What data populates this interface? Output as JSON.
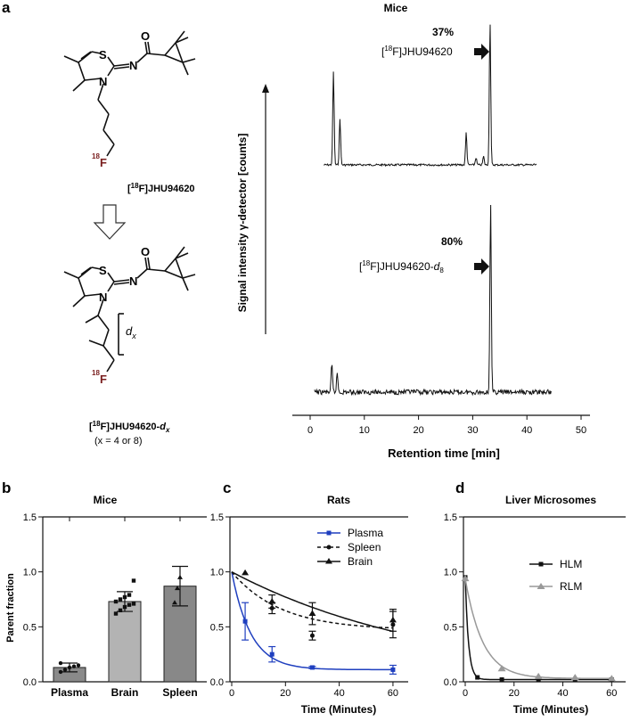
{
  "panel_a": {
    "letter": "a",
    "compound_top_label_pre": "[",
    "compound_top_iso": "18",
    "compound_top_label_post": "F]JHU94620",
    "atom_S": "S",
    "atom_N": "N",
    "atom_O": "O",
    "atom_F_iso": "18",
    "atom_F": "F",
    "dx": "d",
    "dx_sub": "x",
    "compound_bottom_label_pre": "[",
    "compound_bottom_iso": "18",
    "compound_bottom_label_post": "F]JHU94620-",
    "compound_bottom_d": "d",
    "compound_bottom_sub": "x",
    "compound_bottom_note": "(x = 4 or 8)"
  },
  "chart_data": [
    {
      "panel": "a",
      "type": "line",
      "title": "Mice",
      "xlabel": "Retention time [min]",
      "ylabel": "Signal intensity γ-detector [counts]",
      "xlim": [
        0,
        50
      ],
      "xticks": [
        0,
        10,
        20,
        30,
        40,
        50
      ],
      "series": [
        {
          "name": "[18F]JHU94620",
          "annotation_percent": "37%",
          "annotation_pre": "[",
          "annotation_iso": "18",
          "annotation_post": "F]JHU94620",
          "peaks": [
            {
              "x": 4.3,
              "y": 0.65
            },
            {
              "x": 5.5,
              "y": 0.32
            },
            {
              "x": 28.8,
              "y": 0.23
            },
            {
              "x": 30.6,
              "y": 0.05
            },
            {
              "x": 32.0,
              "y": 0.06
            },
            {
              "x": 33.2,
              "y": 1.0
            }
          ]
        },
        {
          "name": "[18F]JHU94620-d8",
          "annotation_percent": "80%",
          "annotation_pre": "[",
          "annotation_iso": "18",
          "annotation_post": "F]JHU94620-",
          "annotation_d": "d",
          "annotation_sub": "8",
          "peaks": [
            {
              "x": 4.0,
              "y": 0.14
            },
            {
              "x": 5.0,
              "y": 0.1
            },
            {
              "x": 33.3,
              "y": 1.0
            }
          ]
        }
      ]
    },
    {
      "panel": "b",
      "letter": "b",
      "type": "bar",
      "title": "Mice",
      "ylabel": "Parent fraction",
      "ylim": [
        0,
        1.5
      ],
      "yticks": [
        "0.0",
        "0.5",
        "1.0",
        "1.5"
      ],
      "categories": [
        "Plasma",
        "Brain",
        "Spleen"
      ],
      "values": [
        0.13,
        0.73,
        0.87
      ],
      "errors": [
        0.04,
        0.09,
        0.18
      ],
      "colors": [
        "#8a8a8a",
        "#b3b3b3",
        "#888888"
      ],
      "points": [
        [
          0.09,
          0.11,
          0.13,
          0.14,
          0.15,
          0.17
        ],
        [
          0.62,
          0.65,
          0.68,
          0.7,
          0.71,
          0.73,
          0.75,
          0.77,
          0.79,
          0.92
        ],
        [
          0.72,
          0.85,
          0.95
        ]
      ]
    },
    {
      "panel": "c",
      "letter": "c",
      "type": "line",
      "title": "Rats",
      "xlabel": "Time (Minutes)",
      "ylim": [
        0,
        1.5
      ],
      "yticks": [
        "0.0",
        "0.5",
        "1.0",
        "1.5"
      ],
      "xlim": [
        0,
        65
      ],
      "xticks": [
        "0",
        "20",
        "40",
        "60"
      ],
      "legend": "top-right",
      "series": [
        {
          "name": "Plasma",
          "color": "#1f3fbf",
          "x": [
            5,
            15,
            30,
            60
          ],
          "y": [
            0.55,
            0.25,
            0.13,
            0.11
          ],
          "err": [
            0.17,
            0.07,
            0.01,
            0.04
          ]
        },
        {
          "name": "Spleen",
          "color": "#111111",
          "x": [
            15,
            30,
            60
          ],
          "y": [
            0.67,
            0.42,
            0.52
          ],
          "err": [
            0.05,
            0.04,
            0.12
          ]
        },
        {
          "name": "Brain",
          "color": "#111111",
          "x": [
            5,
            15,
            30,
            60
          ],
          "y": [
            0.99,
            0.73,
            0.62,
            0.56
          ],
          "err": [
            0.0,
            0.06,
            0.1,
            0.1
          ]
        }
      ]
    },
    {
      "panel": "d",
      "letter": "d",
      "type": "line",
      "title": "Liver Microsomes",
      "xlabel": "Time (Minutes)",
      "ylim": [
        0,
        1.5
      ],
      "yticks": [
        "0.0",
        "0.5",
        "1.0",
        "1.5"
      ],
      "xlim": [
        0,
        65
      ],
      "xticks": [
        "0",
        "20",
        "40",
        "60"
      ],
      "legend": "top-right",
      "series": [
        {
          "name": "HLM",
          "color": "#111111",
          "x": [
            0,
            5,
            15,
            30,
            45,
            60
          ],
          "y": [
            0.95,
            0.04,
            0.02,
            0.02,
            0.02,
            0.02
          ]
        },
        {
          "name": "RLM",
          "color": "#999999",
          "x": [
            0,
            15,
            30,
            45,
            60
          ],
          "y": [
            0.94,
            0.12,
            0.05,
            0.04,
            0.03
          ]
        }
      ]
    }
  ]
}
